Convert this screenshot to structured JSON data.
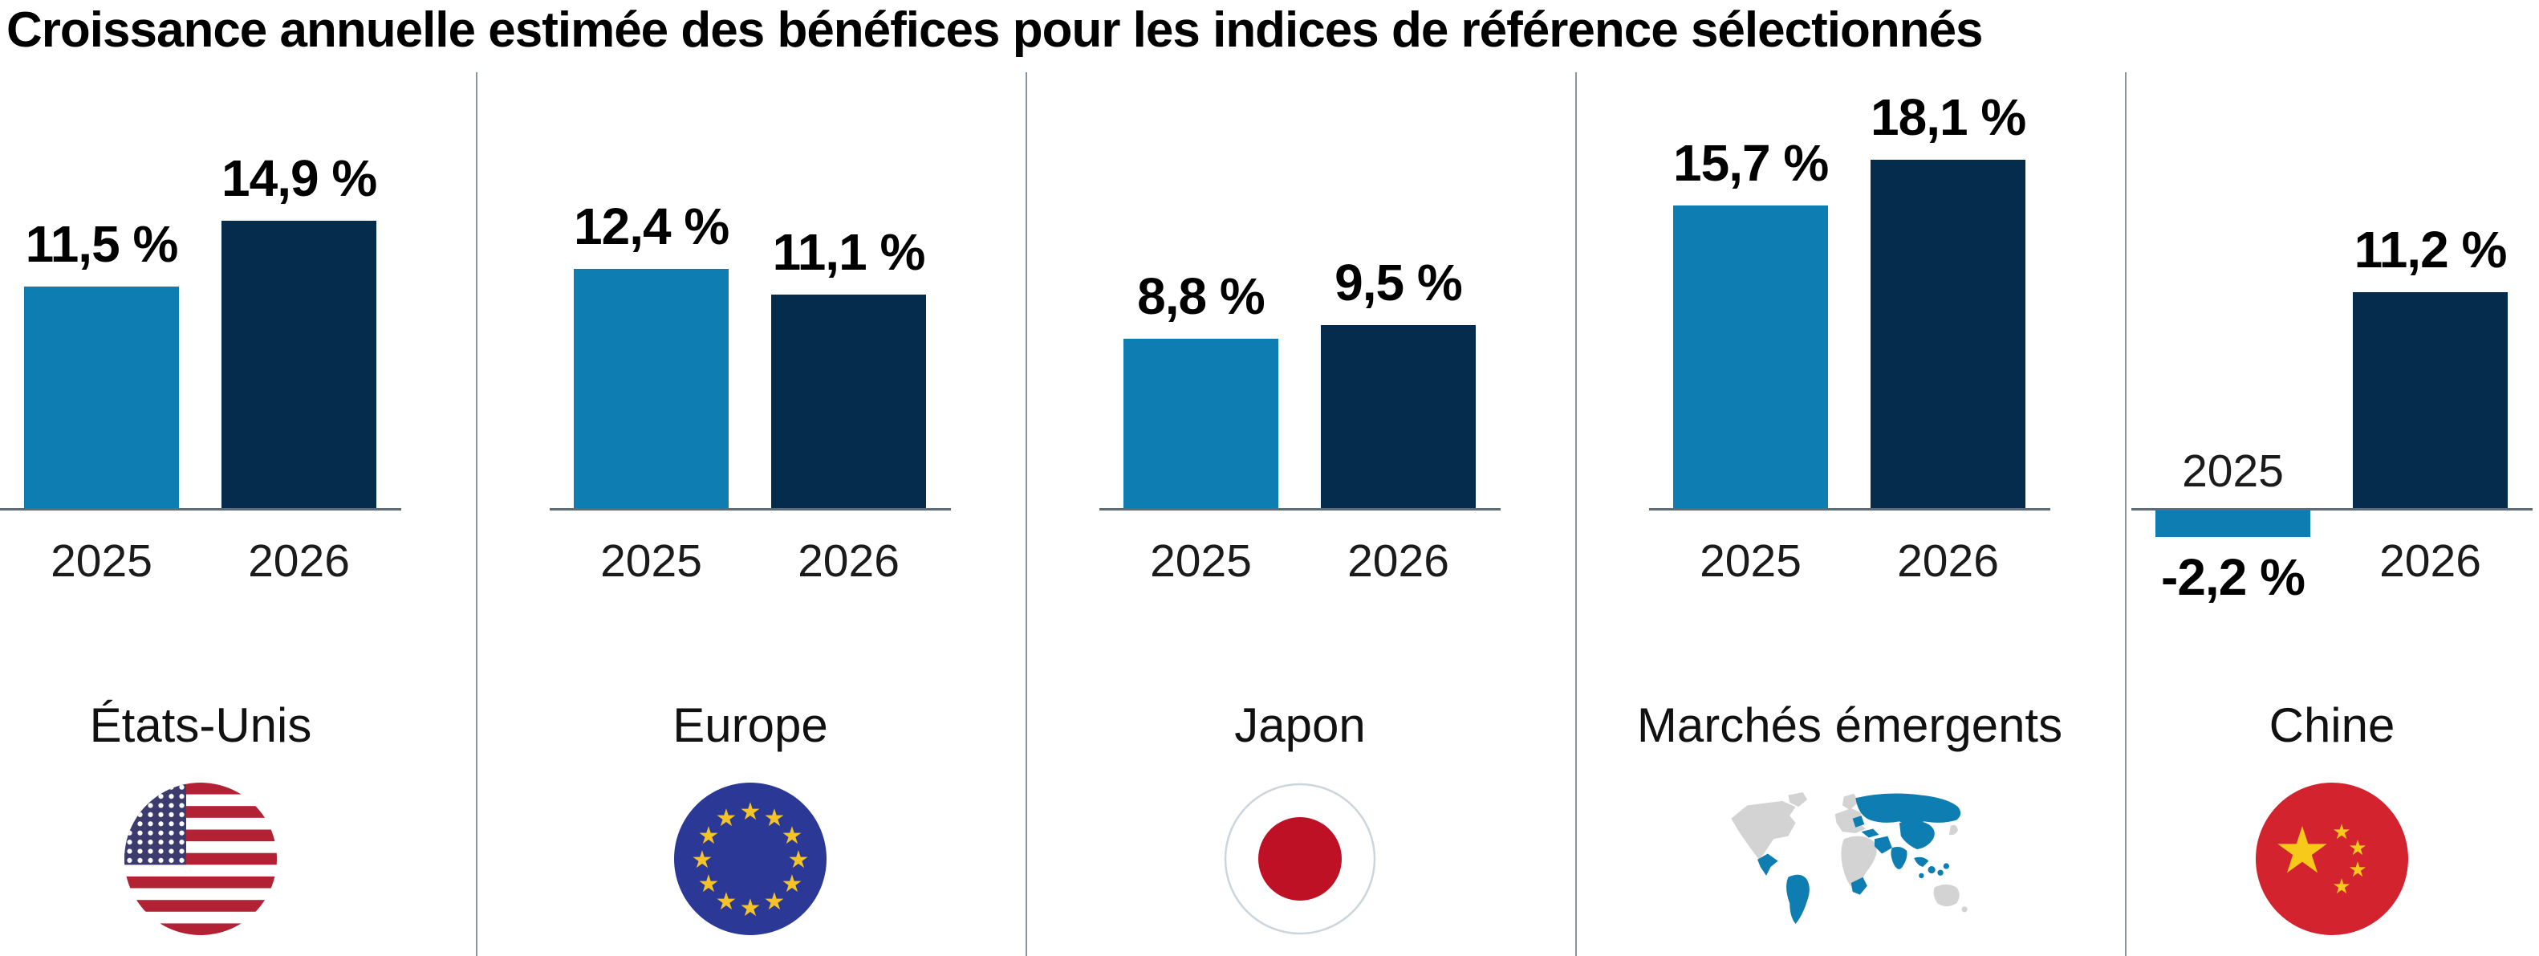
{
  "title": "Croissance annuelle estimée des bénéfices pour les indices de référence sélectionnés",
  "chart_data": {
    "type": "bar",
    "title": "Croissance annuelle estimée des bénéfices pour les indices de référence sélectionnés",
    "unit": "%",
    "value_format": "french_decimal_comma",
    "categories": [
      "2025",
      "2026"
    ],
    "legend_position": "none",
    "grid": false,
    "ylim": [
      -2.2,
      18.1
    ],
    "series_colors": {
      "2025": "#0E7EB2",
      "2026": "#052B4D"
    },
    "panels": [
      {
        "region": "États-Unis",
        "flag": "us-flag-icon",
        "values": [
          11.5,
          14.9
        ],
        "value_labels": [
          "11,5 %",
          "14,9 %"
        ]
      },
      {
        "region": "Europe",
        "flag": "eu-flag-icon",
        "values": [
          12.4,
          11.1
        ],
        "value_labels": [
          "12,4 %",
          "11,1 %"
        ]
      },
      {
        "region": "Japon",
        "flag": "japan-flag-icon",
        "values": [
          8.8,
          9.5
        ],
        "value_labels": [
          "8,8 %",
          "9,5 %"
        ]
      },
      {
        "region": "Marchés émergents",
        "flag": "emerging-markets-map-icon",
        "values": [
          15.7,
          18.1
        ],
        "value_labels": [
          "15,7 %",
          "18,1 %"
        ]
      },
      {
        "region": "Chine",
        "flag": "china-flag-icon",
        "values": [
          -2.2,
          11.2
        ],
        "value_labels": [
          "-2,2 %",
          "11,2 %"
        ]
      }
    ]
  }
}
